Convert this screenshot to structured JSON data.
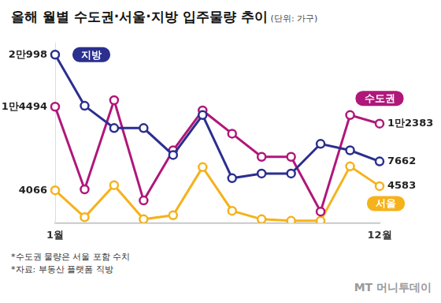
{
  "chart_data": {
    "type": "line",
    "title": "올해 월별 수도권·서울·지방 입주물량 추이",
    "subtitle": "(단위: 가구)",
    "categories": [
      "1월",
      null,
      null,
      null,
      null,
      null,
      null,
      null,
      null,
      null,
      null,
      "12월"
    ],
    "series": [
      {
        "name": "지방",
        "color": "#2b2f8e",
        "values": [
          20998,
          14611,
          11830,
          11830,
          8469,
          13452,
          5572,
          6152,
          6152,
          9860,
          9049,
          7662
        ],
        "value_labels": [
          "2만998",
          null,
          null,
          null,
          null,
          null,
          null,
          null,
          null,
          null,
          null,
          "7662"
        ]
      },
      {
        "name": "수도권",
        "color": "#b0177a",
        "values": [
          14494,
          4180,
          15306,
          2791,
          9049,
          14031,
          11134,
          8238,
          8238,
          1401,
          13452,
          12383
        ],
        "value_labels": [
          "1만4494",
          null,
          null,
          null,
          null,
          null,
          null,
          null,
          null,
          null,
          null,
          "1만2383"
        ]
      },
      {
        "name": "서울",
        "color": "#f5b21b",
        "values": [
          4066,
          700,
          4700,
          450,
          950,
          6950,
          1500,
          450,
          250,
          250,
          7050,
          4583
        ],
        "value_labels": [
          "4066",
          null,
          null,
          null,
          null,
          null,
          null,
          null,
          null,
          null,
          null,
          "4583"
        ]
      }
    ],
    "ylim": [
      0,
      22500
    ],
    "grid": false,
    "tick_labels": "x",
    "marker": "circle",
    "data_labels": true,
    "notes": [
      "*수도권 물량은 서울 포함 수치",
      "*자료: 부동산 플랫폼 직방"
    ],
    "watermark": "MT 머니투데이"
  }
}
